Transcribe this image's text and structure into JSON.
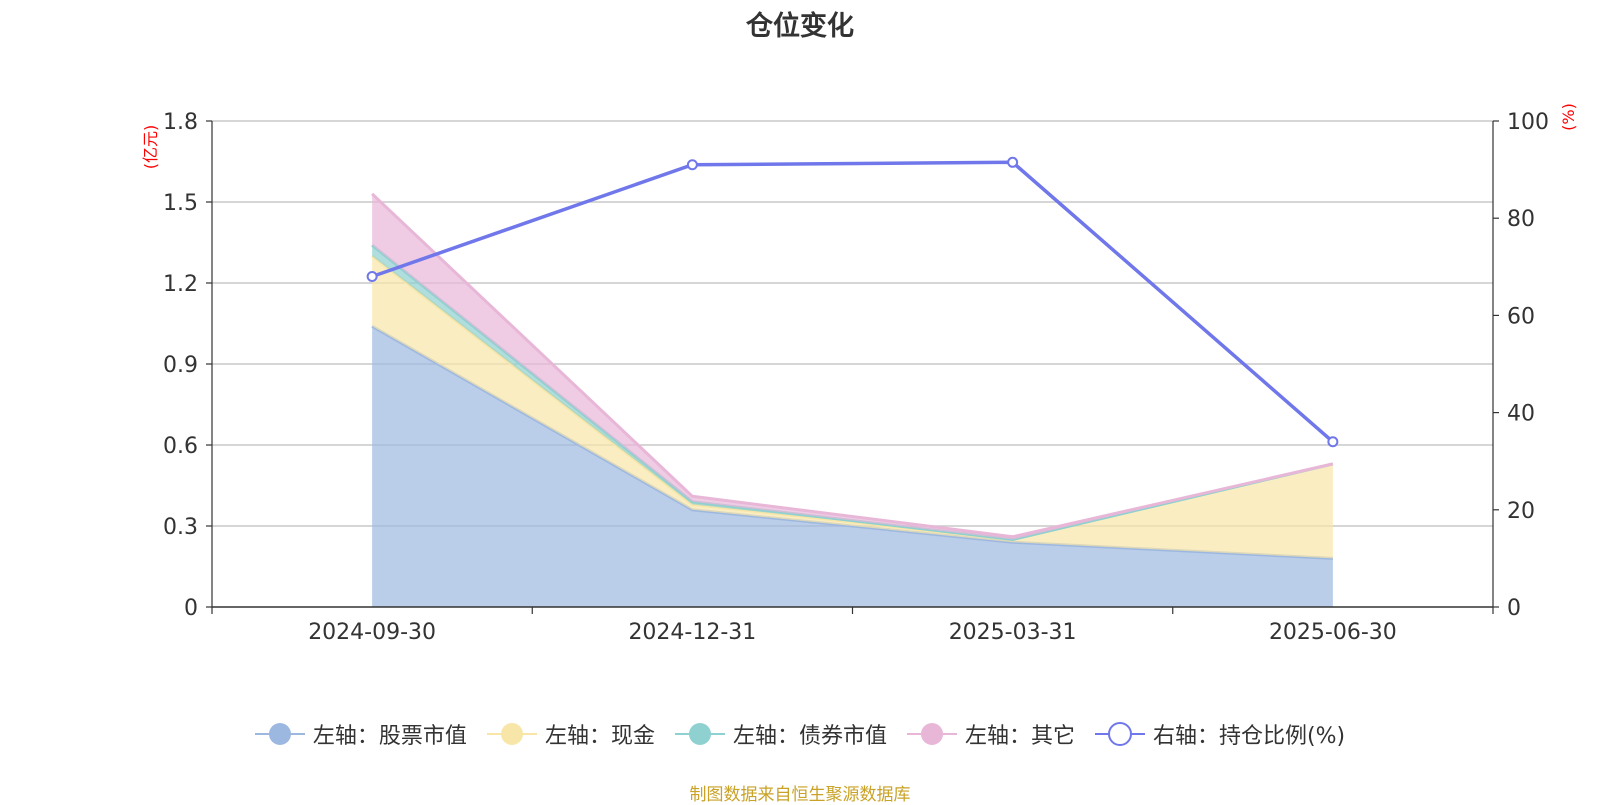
{
  "chart_data": {
    "type": "area",
    "title": "仓位变化",
    "categories": [
      "2024-09-30",
      "2024-12-31",
      "2025-03-31",
      "2025-06-30"
    ],
    "left_axis": {
      "unit": "(亿元)",
      "ylim": [
        0,
        1.8
      ],
      "ticks": [
        "0",
        "0.3",
        "0.6",
        "0.9",
        "1.2",
        "1.5",
        "1.8"
      ]
    },
    "right_axis": {
      "unit": "(%)",
      "ylim": [
        0,
        100
      ],
      "ticks": [
        "0",
        "20",
        "40",
        "60",
        "80",
        "100"
      ]
    },
    "stacked_series": [
      {
        "name": "左轴：股票市值",
        "color": "#9db8e0",
        "values": [
          1.04,
          0.36,
          0.24,
          0.18
        ]
      },
      {
        "name": "左轴：现金",
        "color": "#f8e6a8",
        "values": [
          0.26,
          0.02,
          0.01,
          0.35
        ]
      },
      {
        "name": "左轴：债券市值",
        "color": "#8fd0d0",
        "values": [
          0.04,
          0.01,
          0.0,
          0.0
        ]
      },
      {
        "name": "左轴：其它",
        "color": "#e8b7d8",
        "values": [
          0.19,
          0.02,
          0.01,
          0.0
        ]
      }
    ],
    "line_series": {
      "name": "右轴：持仓比例(%)",
      "color": "#7077ea",
      "values": [
        68,
        91,
        91.5,
        34
      ]
    },
    "grid": true,
    "legend_position": "bottom"
  },
  "source": "制图数据来自恒生聚源数据库"
}
